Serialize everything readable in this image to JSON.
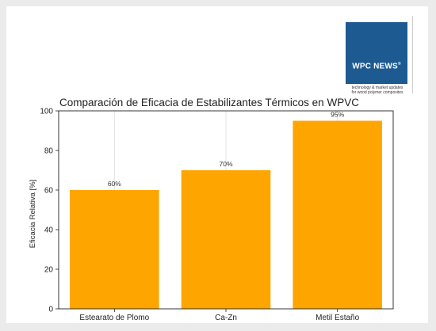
{
  "logo": {
    "title": "WPC NEWS",
    "registered": "®",
    "line1": "technology & market updates",
    "line2": "for wood polymer composites"
  },
  "colors": {
    "bar": "#FFA500",
    "logo_blue": "#1e5a92",
    "background": "#ebebeb"
  },
  "chart_data": {
    "type": "bar",
    "title": "Comparación de Eficacia de Estabilizantes Térmicos en WPVC",
    "xlabel": "",
    "ylabel": "Eficacia Relativa [%]",
    "categories": [
      "Estearato de Plomo",
      "Ca-Zn",
      "Metil Estaño"
    ],
    "values": [
      60,
      70,
      95
    ],
    "data_labels": [
      "60%",
      "70%",
      "95%"
    ],
    "ylim": [
      0,
      100
    ],
    "yticks": [
      "0",
      "20",
      "40",
      "60",
      "80",
      "100"
    ],
    "grid": "vertical",
    "legend": "none"
  }
}
